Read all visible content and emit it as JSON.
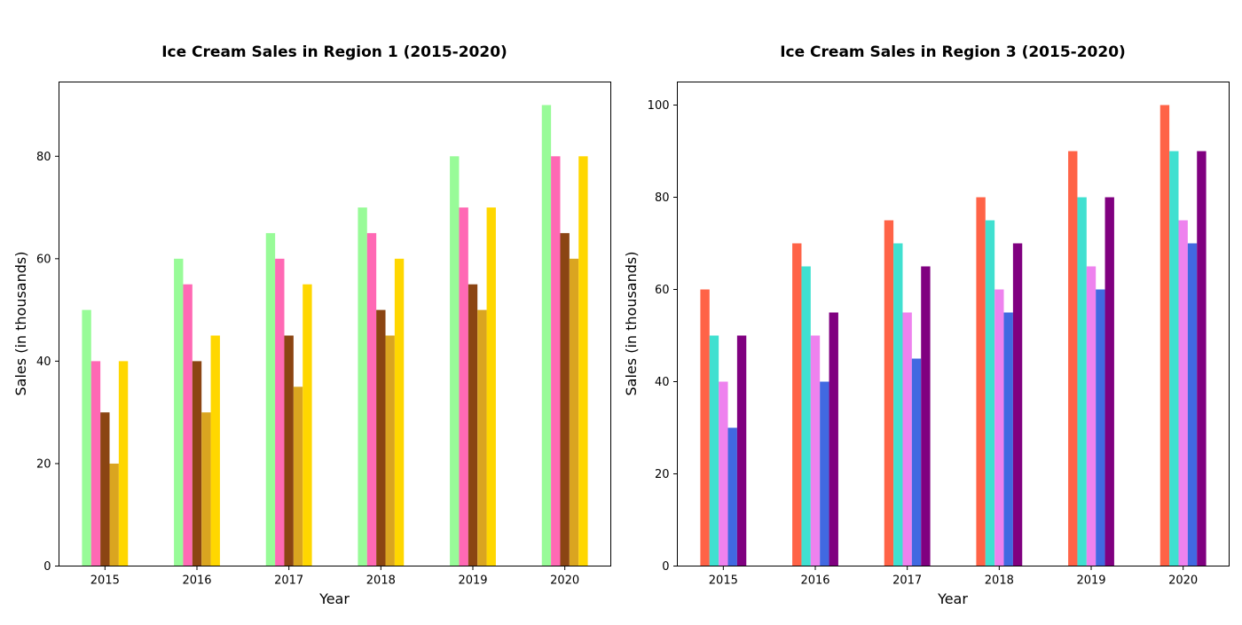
{
  "chart_data": [
    {
      "type": "bar",
      "title": "Ice Cream Sales in Region 1 (2015-2020)",
      "xlabel": "Year",
      "ylabel": "Sales (in thousands)",
      "categories": [
        "2015",
        "2016",
        "2017",
        "2018",
        "2019",
        "2020"
      ],
      "ylim": [
        0,
        94.5
      ],
      "yticks": [
        0,
        20,
        40,
        60,
        80
      ],
      "grid": false,
      "legend": false,
      "series": [
        {
          "color": "#98FB98",
          "values": [
            50,
            60,
            65,
            70,
            80,
            90
          ]
        },
        {
          "color": "#FF69B4",
          "values": [
            40,
            55,
            60,
            65,
            70,
            80
          ]
        },
        {
          "color": "#8B4513",
          "values": [
            30,
            40,
            45,
            50,
            55,
            65
          ]
        },
        {
          "color": "#DAA520",
          "values": [
            20,
            30,
            35,
            45,
            50,
            60
          ]
        },
        {
          "color": "#FFD700",
          "values": [
            40,
            45,
            55,
            60,
            70,
            80
          ]
        }
      ]
    },
    {
      "type": "bar",
      "title": "Ice Cream Sales in Region 3 (2015-2020)",
      "xlabel": "Year",
      "ylabel": "Sales (in thousands)",
      "categories": [
        "2015",
        "2016",
        "2017",
        "2018",
        "2019",
        "2020"
      ],
      "ylim": [
        0,
        105
      ],
      "yticks": [
        0,
        20,
        40,
        60,
        80,
        100
      ],
      "grid": false,
      "legend": false,
      "series": [
        {
          "color": "#FF6347",
          "values": [
            60,
            70,
            75,
            80,
            90,
            100
          ]
        },
        {
          "color": "#40E0D0",
          "values": [
            50,
            65,
            70,
            75,
            80,
            90
          ]
        },
        {
          "color": "#EE82EE",
          "values": [
            40,
            50,
            55,
            60,
            65,
            75
          ]
        },
        {
          "color": "#4169E1",
          "values": [
            30,
            40,
            45,
            55,
            60,
            70
          ]
        },
        {
          "color": "#800080",
          "values": [
            50,
            55,
            65,
            70,
            80,
            90
          ]
        }
      ]
    }
  ]
}
